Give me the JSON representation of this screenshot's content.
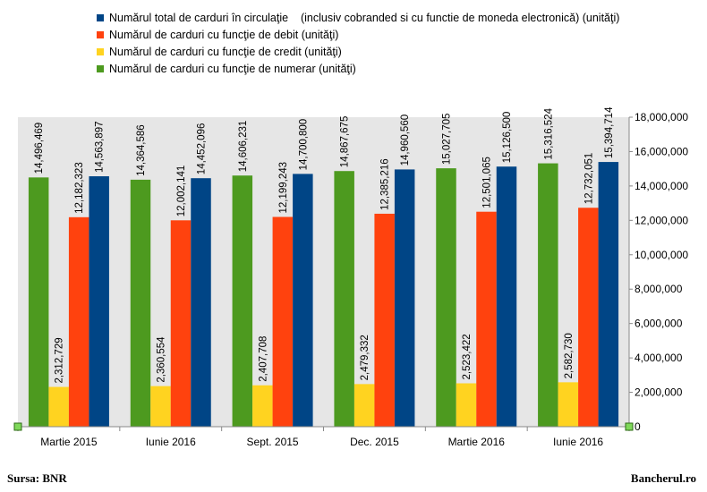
{
  "chart_data": {
    "type": "bar",
    "categories": [
      "Martie 2015",
      "Iunie 2016",
      "Sept. 2015",
      "Dec. 2015",
      "Martie 2016",
      "Iunie 2016"
    ],
    "series": [
      {
        "name": "Numărul de carduri cu funcţie de numerar (unităţi)",
        "color": "#4d9a1f",
        "values": [
          14496469,
          14364586,
          14606231,
          14867675,
          15027705,
          15316524
        ],
        "labels": [
          "14,496,469",
          "14,364,586",
          "14,606,231",
          "14,867,675",
          "15,027,705",
          "15,316,524"
        ]
      },
      {
        "name": "Numărul de carduri cu funcţie de credit (unităţi)",
        "color": "#ffd320",
        "values": [
          2312729,
          2360554,
          2407708,
          2479332,
          2523422,
          2582730
        ],
        "labels": [
          "2,312,729",
          "2,360,554",
          "2,407,708",
          "2,479,332",
          "2,523,422",
          "2,582,730"
        ]
      },
      {
        "name": "Numărul de carduri cu funcţie de debit (unităţi)",
        "color": "#ff420e",
        "values": [
          12182323,
          12002141,
          12199243,
          12385216,
          12501065,
          12732051
        ],
        "labels": [
          "12,182,323",
          "12,002,141",
          "12,199,243",
          "12,385,216",
          "12,501,065",
          "12,732,051"
        ]
      },
      {
        "name": "Numărul total de carduri în circulaţie    (inclusiv cobranded si cu functie de moneda electronică) (unităţi)",
        "color": "#004586",
        "values": [
          14563897,
          14452096,
          14700800,
          14960560,
          15126500,
          15394714
        ],
        "labels": [
          "14,563,897",
          "14,452,096",
          "14,700,800",
          "14,960,560",
          "15,126,500",
          "15,394,714"
        ]
      }
    ],
    "legend_order": [
      3,
      2,
      1,
      0
    ],
    "ylim": [
      0,
      18000000
    ],
    "yticks": [
      0,
      2000000,
      4000000,
      6000000,
      8000000,
      10000000,
      12000000,
      14000000,
      16000000,
      18000000
    ],
    "ytick_labels": [
      "0",
      "2,000,000",
      "4,000,000",
      "6,000,000",
      "8,000,000",
      "10,000,000",
      "12,000,000",
      "14,000,000",
      "16,000,000",
      "18,000,000"
    ],
    "y_axis_side": "right",
    "grid": false,
    "legend_position": "top",
    "plot_background": "#e6e6e6",
    "title": "",
    "xlabel": "",
    "ylabel": ""
  },
  "footer": {
    "source": "Sursa: BNR",
    "brand": "Bancherul.ro"
  }
}
